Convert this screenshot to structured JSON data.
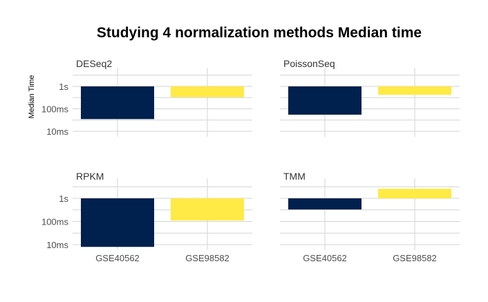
{
  "chart_data": {
    "type": "bar",
    "title": "Studying 4 normalization methods Median time",
    "ylabel": "Median Time",
    "xlabel": "",
    "y_scale": "log10",
    "y_ticks": [
      {
        "value": 1,
        "label": "1s"
      },
      {
        "value": 0.1,
        "label": "100ms"
      },
      {
        "value": 0.01,
        "label": "10ms"
      }
    ],
    "categories": [
      "GSE40562",
      "GSE98582"
    ],
    "colors": {
      "GSE40562": "#00204d",
      "GSE98582": "#ffea46"
    },
    "facets": [
      {
        "name": "DESeq2",
        "values": [
          0.035,
          0.33
        ]
      },
      {
        "name": "PoissonSeq",
        "values": [
          0.055,
          0.42
        ]
      },
      {
        "name": "RPKM",
        "values": [
          0.008,
          0.11
        ]
      },
      {
        "name": "TMM",
        "values": [
          0.33,
          2.6
        ]
      }
    ]
  }
}
